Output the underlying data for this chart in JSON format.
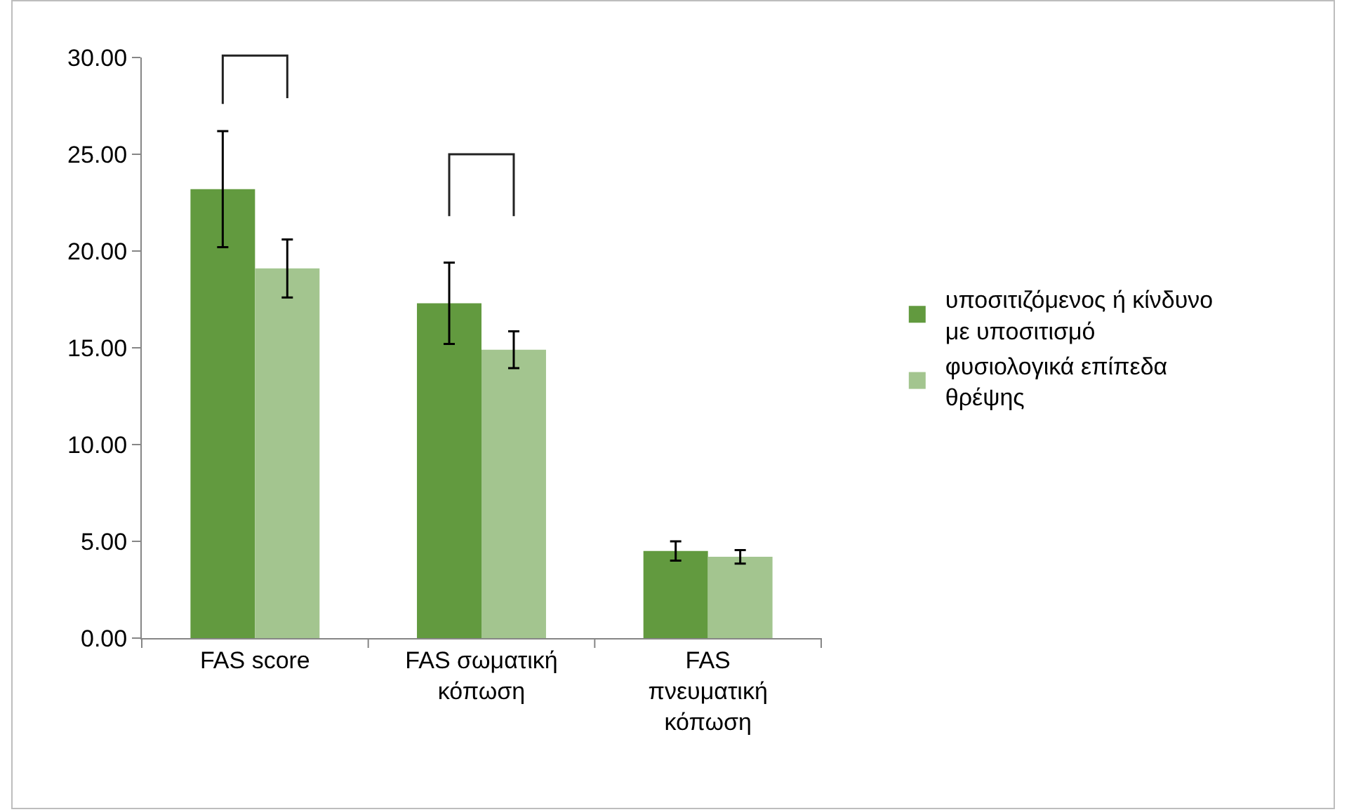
{
  "chart_data": {
    "type": "bar",
    "categories": [
      "FAS score",
      "FAS σωματική κόπωση",
      "FAS πνευματική κόπωση"
    ],
    "series": [
      {
        "name": "υποσιτιζόμενος ή κίνδυνο με υποσιτισμό",
        "color": "#629a3f",
        "values": [
          23.2,
          17.3,
          4.5
        ],
        "errors": [
          3.0,
          2.1,
          0.5
        ]
      },
      {
        "name": "φυσιολογικά επίπεδα θρέψης",
        "color": "#a3c58f",
        "values": [
          19.1,
          14.9,
          4.2
        ],
        "errors": [
          1.5,
          0.95,
          0.35
        ]
      }
    ],
    "ylim": [
      0,
      30
    ],
    "yticks": [
      {
        "value": 0,
        "label": "0.00"
      },
      {
        "value": 5,
        "label": "5.00"
      },
      {
        "value": 10,
        "label": "10.00"
      },
      {
        "value": 15,
        "label": "15.00"
      },
      {
        "value": 20,
        "label": "20.00"
      },
      {
        "value": 25,
        "label": "25.00"
      },
      {
        "value": 30,
        "label": "30.00"
      }
    ],
    "grid": false,
    "legend": "right"
  }
}
